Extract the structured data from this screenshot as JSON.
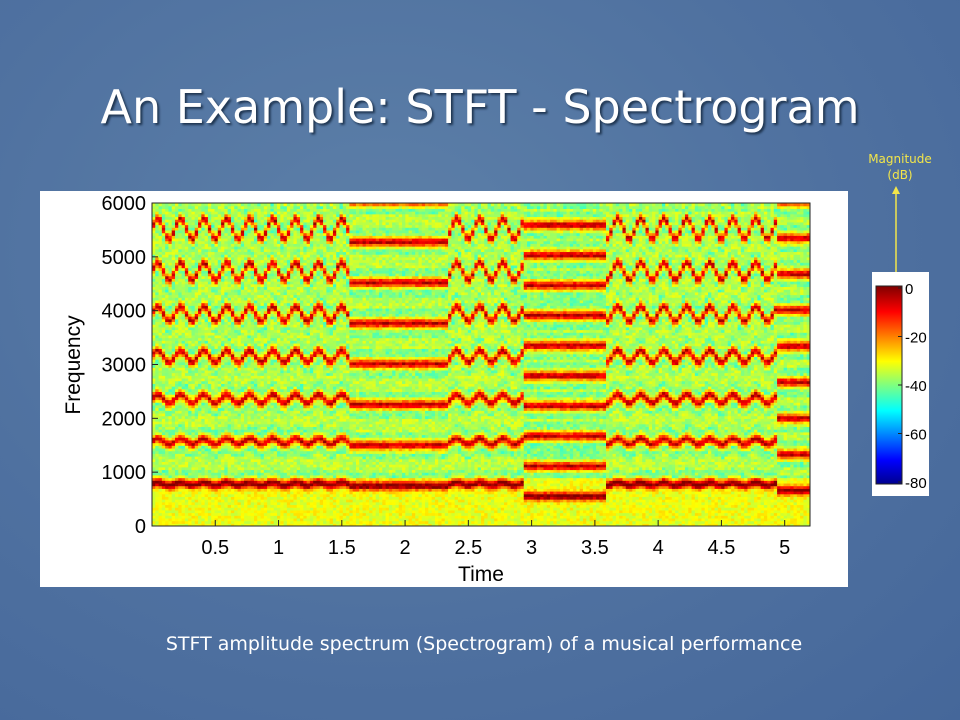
{
  "slide": {
    "title": "An Example: STFT - Spectrogram",
    "caption": "STFT amplitude spectrum (Spectrogram) of a musical performance"
  },
  "colorbar": {
    "label_line1": "Magnitude",
    "label_line2": "(dB)",
    "ticks": [
      "0",
      "-20",
      "-40",
      "-60",
      "-80"
    ],
    "range_db": [
      -80,
      0
    ],
    "colormap": "jet"
  },
  "chart_data": {
    "type": "heatmap",
    "xlabel": "Time",
    "ylabel": "Frequency",
    "xlim": [
      0,
      5.2
    ],
    "ylim": [
      0,
      6000
    ],
    "xticks": [
      0.5,
      1,
      1.5,
      2,
      2.5,
      3,
      3.5,
      4,
      4.5,
      5
    ],
    "xtick_labels": [
      "0.5",
      "1",
      "1.5",
      "2",
      "2.5",
      "3",
      "3.5",
      "4",
      "4.5",
      "5"
    ],
    "yticks": [
      0,
      1000,
      2000,
      3000,
      4000,
      5000,
      6000
    ],
    "ytick_labels": [
      "0",
      "1000",
      "2000",
      "3000",
      "4000",
      "5000",
      "6000"
    ],
    "grid": false,
    "colors": {
      "low": "#00008f",
      "high": "#800000"
    },
    "notes_f0_hz": [
      {
        "t_start": 0.0,
        "t_end": 1.55,
        "f0": 790,
        "vibrato": true
      },
      {
        "t_start": 1.55,
        "t_end": 2.35,
        "f0": 755,
        "vibrato": false
      },
      {
        "t_start": 2.35,
        "t_end": 2.95,
        "f0": 790,
        "vibrato": true
      },
      {
        "t_start": 2.95,
        "t_end": 3.6,
        "f0": 560,
        "vibrato": false
      },
      {
        "t_start": 3.6,
        "t_end": 4.95,
        "f0": 790,
        "vibrato": true
      },
      {
        "t_start": 4.95,
        "t_end": 5.2,
        "f0": 670,
        "vibrato": false
      }
    ]
  }
}
